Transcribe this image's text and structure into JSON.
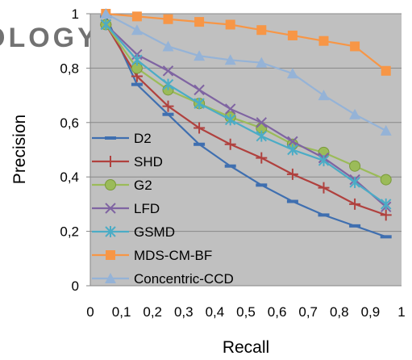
{
  "watermark": "OLOGY PUBLICATIONS",
  "chart_data": {
    "type": "line",
    "xlabel": "Recall",
    "ylabel": "Precision",
    "xlim": [
      0,
      1
    ],
    "ylim": [
      0,
      1
    ],
    "x_ticks": [
      "0",
      "0,1",
      "0,2",
      "0,3",
      "0,4",
      "0,5",
      "0,6",
      "0,7",
      "0,8",
      "0,9",
      "1"
    ],
    "y_ticks": [
      "0",
      "0,2",
      "0,4",
      "0,6",
      "0,8",
      "1"
    ],
    "x_tick_values": [
      0,
      0.1,
      0.2,
      0.3,
      0.4,
      0.5,
      0.6,
      0.7,
      0.8,
      0.9,
      1
    ],
    "y_tick_values": [
      0,
      0.2,
      0.4,
      0.6,
      0.8,
      1
    ],
    "plot_background": "#c0c0c0",
    "grid": true,
    "legend": "left-inside",
    "x": [
      0.05,
      0.15,
      0.25,
      0.35,
      0.45,
      0.55,
      0.65,
      0.75,
      0.85,
      0.95
    ],
    "series": [
      {
        "name": "D2",
        "color": "#3f6fb0",
        "marker": "dash",
        "values": [
          0.99,
          0.74,
          0.63,
          0.52,
          0.44,
          0.37,
          0.31,
          0.26,
          0.22,
          0.18
        ]
      },
      {
        "name": "SHD",
        "color": "#b0413e",
        "marker": "plus",
        "values": [
          0.96,
          0.77,
          0.66,
          0.58,
          0.52,
          0.47,
          0.41,
          0.36,
          0.3,
          0.26
        ]
      },
      {
        "name": "G2",
        "color": "#9bbb59",
        "marker": "circle",
        "values": [
          0.96,
          0.8,
          0.72,
          0.67,
          0.62,
          0.58,
          0.52,
          0.49,
          0.44,
          0.39
        ]
      },
      {
        "name": "LFD",
        "color": "#7f64a2",
        "marker": "x",
        "values": [
          0.96,
          0.85,
          0.79,
          0.72,
          0.65,
          0.6,
          0.53,
          0.47,
          0.39,
          0.29
        ]
      },
      {
        "name": "GSMD",
        "color": "#4bacc6",
        "marker": "asterisk",
        "values": [
          0.96,
          0.83,
          0.74,
          0.67,
          0.61,
          0.55,
          0.5,
          0.46,
          0.38,
          0.3
        ]
      },
      {
        "name": "MDS-CM-BF",
        "color": "#f79646",
        "marker": "square",
        "values": [
          1.0,
          0.99,
          0.98,
          0.97,
          0.96,
          0.94,
          0.92,
          0.9,
          0.88,
          0.79
        ]
      },
      {
        "name": "Concentric-CCD",
        "color": "#95b3d7",
        "marker": "triangle",
        "values": [
          1.0,
          0.94,
          0.88,
          0.845,
          0.83,
          0.82,
          0.78,
          0.7,
          0.63,
          0.57
        ]
      }
    ]
  }
}
